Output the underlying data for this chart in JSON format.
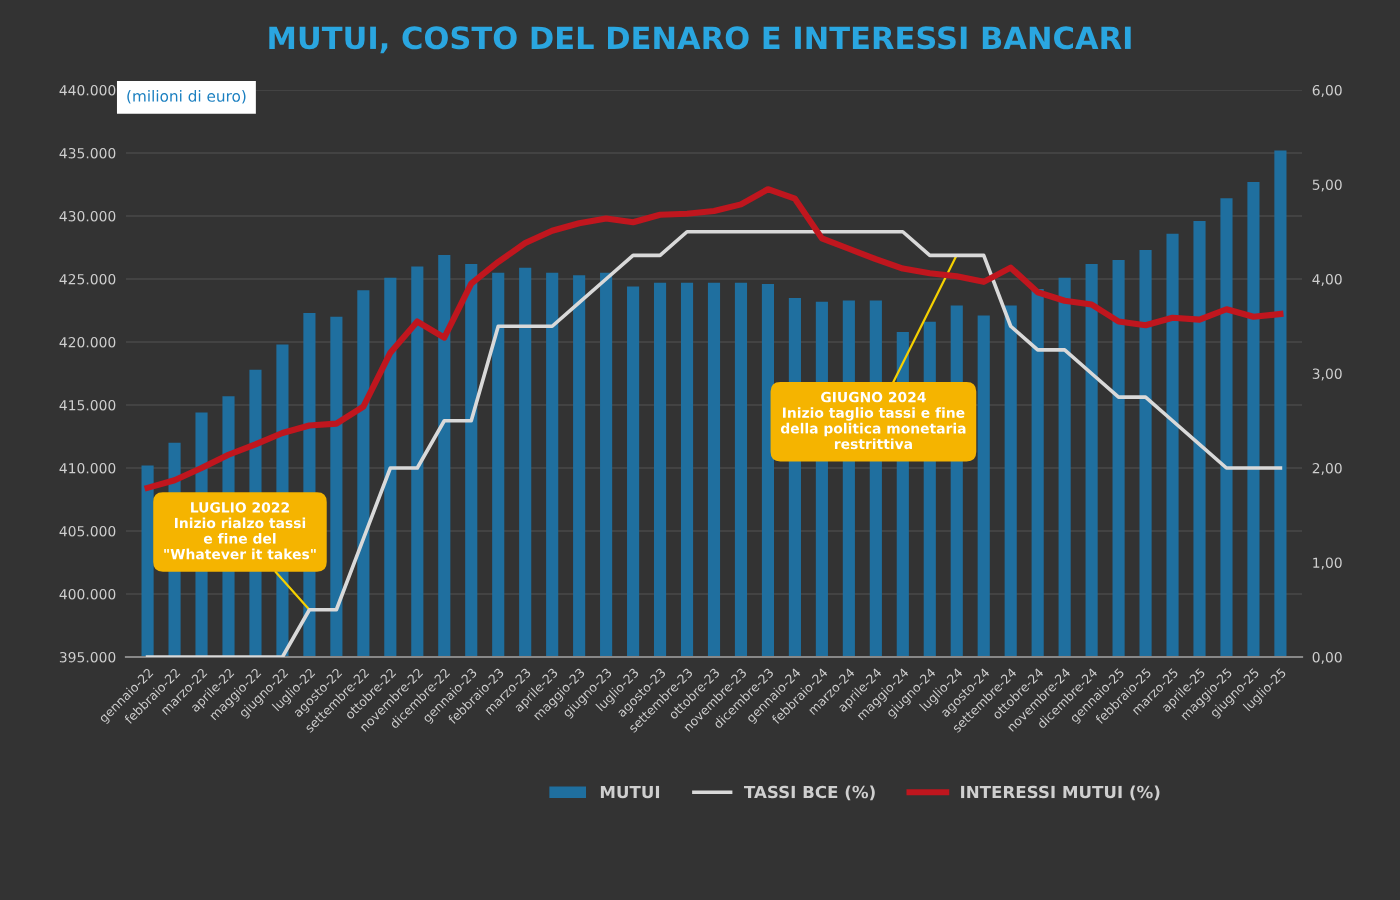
{
  "chart_data": {
    "type": "bar",
    "title": "MUTUI, COSTO DEL DENARO E INTERESSI BANCARI",
    "ylabel": "(milioni di euro)",
    "categories": [
      "gennaio-22",
      "febbraio-22",
      "marzo-22",
      "aprile-22",
      "maggio-22",
      "giugno-22",
      "luglio-22",
      "agosto-22",
      "settembre-22",
      "ottobre-22",
      "novembre-22",
      "dicembre-22",
      "gennaio-23",
      "febbraio-23",
      "marzo-23",
      "aprile-23",
      "maggio-23",
      "giugno-23",
      "luglio-23",
      "agosto-23",
      "settembre-23",
      "ottobre-23",
      "novembre-23",
      "dicembre-23",
      "gennaio-24",
      "febbraio-24",
      "marzo-24",
      "aprile-24",
      "maggio-24",
      "giugno-24",
      "luglio-24",
      "agosto-24",
      "settembre-24",
      "ottobre-24",
      "novembre-24",
      "dicembre-24",
      "gennaio-25",
      "febbraio-25",
      "marzo-25",
      "aprile-25",
      "maggio-25",
      "giugno-25",
      "luglio-25"
    ],
    "series": [
      {
        "name": "MUTUI",
        "type": "bar",
        "color": "#1f6f9f",
        "values": [
          410200,
          412000,
          414400,
          415700,
          417800,
          419800,
          422300,
          422000,
          424100,
          425100,
          426000,
          426900,
          426200,
          425500,
          425900,
          425500,
          425300,
          425500,
          424400,
          424700,
          424700,
          424700,
          424700,
          424600,
          423500,
          423200,
          423300,
          423300,
          420800,
          421600,
          422900,
          422100,
          422900,
          424200,
          425100,
          426200,
          426500,
          427300,
          428600,
          429600,
          431400,
          432700,
          435200
        ]
      },
      {
        "name": "TASSI BCE (%)",
        "type": "line",
        "axis": "y2",
        "color": "#d9d9d9",
        "values": [
          0,
          0,
          0,
          0,
          0,
          0,
          0.5,
          0.5,
          1.25,
          2.0,
          2.0,
          2.5,
          2.5,
          3.5,
          3.5,
          3.5,
          3.75,
          4.0,
          4.25,
          4.25,
          4.5,
          4.5,
          4.5,
          4.5,
          4.5,
          4.5,
          4.5,
          4.5,
          4.5,
          4.25,
          4.25,
          4.25,
          3.5,
          3.25,
          3.25,
          3.0,
          2.75,
          2.75,
          2.5,
          2.25,
          2.0,
          2.0,
          2.0
        ]
      },
      {
        "name": "INTERESSI MUTUI (%)",
        "type": "line",
        "axis": "y2",
        "color": "#c0161e",
        "values": [
          1.79,
          1.87,
          2.0,
          2.14,
          2.25,
          2.37,
          2.45,
          2.47,
          2.65,
          3.22,
          3.55,
          3.38,
          3.95,
          4.18,
          4.38,
          4.51,
          4.59,
          4.64,
          4.6,
          4.68,
          4.69,
          4.72,
          4.79,
          4.95,
          4.85,
          4.43,
          4.32,
          4.21,
          4.11,
          4.06,
          4.03,
          3.97,
          4.12,
          3.86,
          3.77,
          3.73,
          3.55,
          3.51,
          3.59,
          3.57,
          3.68,
          3.6,
          3.63
        ]
      }
    ],
    "ylim": [
      395000,
      440000
    ],
    "yticks": [
      {
        "value": 395000,
        "label": "395.000"
      },
      {
        "value": 400000,
        "label": "400.000"
      },
      {
        "value": 405000,
        "label": "405.000"
      },
      {
        "value": 410000,
        "label": "410.000"
      },
      {
        "value": 415000,
        "label": "415.000"
      },
      {
        "value": 420000,
        "label": "420.000"
      },
      {
        "value": 425000,
        "label": "425.000"
      },
      {
        "value": 430000,
        "label": "430.000"
      },
      {
        "value": 435000,
        "label": "435.000"
      },
      {
        "value": 440000,
        "label": "440.000"
      }
    ],
    "y2lim": [
      0,
      6
    ],
    "y2ticks": [
      {
        "value": 0,
        "label": "0,00"
      },
      {
        "value": 1,
        "label": "1,00"
      },
      {
        "value": 2,
        "label": "2,00"
      },
      {
        "value": 3,
        "label": "3,00"
      },
      {
        "value": 4,
        "label": "4,00"
      },
      {
        "value": 5,
        "label": "5,00"
      },
      {
        "value": 6,
        "label": "6,00"
      }
    ],
    "annotations": [
      {
        "text": "LUGLIO 2022\nInizio rialzo tassi\ne fine del\n\"Whatever it takes\"",
        "x": "luglio-22",
        "y": 398750
      },
      {
        "text": "GIUGNO 2024\nInizio taglio tassi e fine\ndella politica monetaria\nrestrittiva",
        "x": "luglio-24",
        "y": 426900
      }
    ],
    "grid": "y",
    "legend": "bottom"
  }
}
